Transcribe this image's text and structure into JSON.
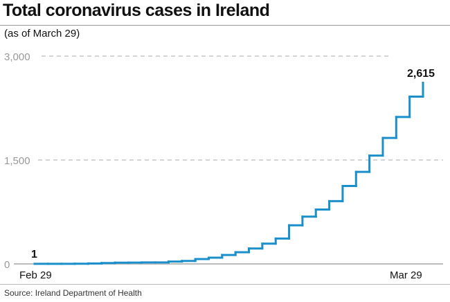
{
  "title": "Total coronavirus cases in Ireland",
  "subtitle": "(as of March 29)",
  "source": "Source: Ireland Department of Health",
  "colors": {
    "line": "#1a8fcb",
    "grid": "#aaaaaa"
  },
  "chart_data": {
    "type": "line",
    "style": "step",
    "title": "Total coronavirus cases in Ireland",
    "subtitle": "(as of March 29)",
    "x": [
      "Feb 29",
      "Mar 1",
      "Mar 2",
      "Mar 3",
      "Mar 4",
      "Mar 5",
      "Mar 6",
      "Mar 7",
      "Mar 8",
      "Mar 9",
      "Mar 10",
      "Mar 11",
      "Mar 12",
      "Mar 13",
      "Mar 14",
      "Mar 15",
      "Mar 16",
      "Mar 17",
      "Mar 18",
      "Mar 19",
      "Mar 20",
      "Mar 21",
      "Mar 22",
      "Mar 23",
      "Mar 24",
      "Mar 25",
      "Mar 26",
      "Mar 27",
      "Mar 28",
      "Mar 29"
    ],
    "values": [
      1,
      1,
      1,
      2,
      6,
      13,
      18,
      19,
      21,
      21,
      34,
      43,
      70,
      90,
      129,
      169,
      223,
      292,
      366,
      557,
      683,
      785,
      906,
      1125,
      1329,
      1564,
      1819,
      2121,
      2415,
      2615
    ],
    "ylim": [
      0,
      3000
    ],
    "yticks": [
      "0",
      "1,500",
      "3,000"
    ],
    "xticks": [
      "Feb 29",
      "Mar 29"
    ],
    "annotations": {
      "first": "1",
      "last": "2,615"
    },
    "grid": "dashed horizontal"
  }
}
